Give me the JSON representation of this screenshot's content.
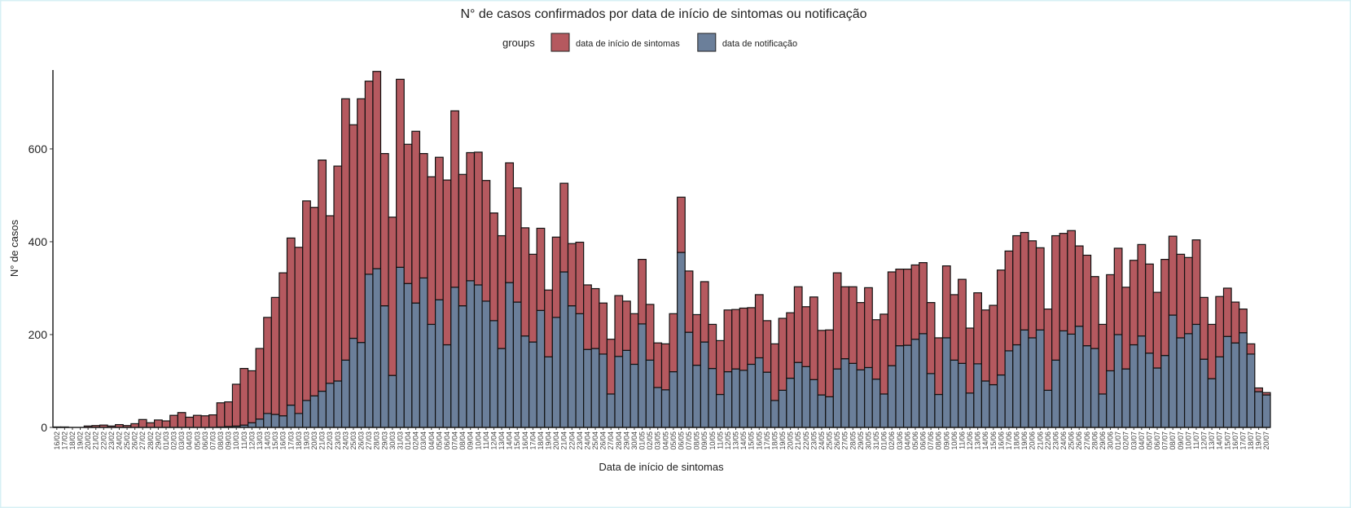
{
  "chart_data": {
    "type": "stacked_bar",
    "title": "N° de casos confirmados por data de início de sintomas ou notificação",
    "x_label": "Data de início de sintomas",
    "y_label": "N° de casos",
    "legend_title": "groups",
    "categories": [
      "16/02",
      "17/02",
      "18/02",
      "19/02",
      "20/02",
      "21/02",
      "22/02",
      "23/02",
      "24/02",
      "25/02",
      "26/02",
      "27/02",
      "28/02",
      "29/02",
      "01/03",
      "02/03",
      "03/03",
      "04/03",
      "05/03",
      "06/03",
      "07/03",
      "08/03",
      "09/03",
      "10/03",
      "11/03",
      "12/03",
      "13/03",
      "14/03",
      "15/03",
      "16/03",
      "17/03",
      "18/03",
      "19/03",
      "20/03",
      "21/03",
      "22/03",
      "23/03",
      "24/03",
      "25/03",
      "26/03",
      "27/03",
      "28/03",
      "29/03",
      "30/03",
      "31/03",
      "01/04",
      "02/04",
      "03/04",
      "04/04",
      "05/04",
      "06/04",
      "07/04",
      "08/04",
      "09/04",
      "10/04",
      "11/04",
      "12/04",
      "13/04",
      "14/04",
      "15/04",
      "16/04",
      "17/04",
      "18/04",
      "19/04",
      "20/04",
      "21/04",
      "22/04",
      "23/04",
      "24/04",
      "25/04",
      "26/04",
      "27/04",
      "28/04",
      "29/04",
      "30/04",
      "01/05",
      "02/05",
      "03/05",
      "04/05",
      "05/05",
      "06/05",
      "07/05",
      "08/05",
      "09/05",
      "10/05",
      "11/05",
      "12/05",
      "13/05",
      "14/05",
      "15/05",
      "16/05",
      "17/05",
      "18/05",
      "19/05",
      "20/05",
      "21/05",
      "22/05",
      "23/05",
      "24/05",
      "25/05",
      "26/05",
      "27/05",
      "28/05",
      "29/05",
      "30/05",
      "31/05",
      "01/06",
      "02/06",
      "03/06",
      "04/06",
      "05/06",
      "06/06",
      "07/06",
      "08/06",
      "09/06",
      "10/06",
      "11/06",
      "12/06",
      "13/06",
      "14/06",
      "15/06",
      "16/06",
      "17/06",
      "18/06",
      "19/06",
      "20/06",
      "21/06",
      "22/06",
      "23/06",
      "24/06",
      "25/06",
      "26/06",
      "27/06",
      "28/06",
      "29/06",
      "30/06",
      "01/07",
      "02/07",
      "03/07",
      "04/07",
      "05/07",
      "06/07",
      "07/07",
      "08/07",
      "09/07",
      "10/07",
      "11/07",
      "12/07",
      "13/07",
      "14/07",
      "15/07",
      "16/07",
      "17/07",
      "18/07",
      "19/07",
      "20/07"
    ],
    "series": [
      {
        "name": "data de notificação",
        "color": "#6b7f9a",
        "values": [
          0,
          0,
          0,
          0,
          0,
          0,
          0,
          0,
          0,
          0,
          0,
          0,
          0,
          0,
          0,
          0,
          0,
          0,
          0,
          0,
          0,
          1,
          2,
          3,
          5,
          10,
          18,
          30,
          28,
          25,
          48,
          30,
          58,
          68,
          78,
          95,
          100,
          145,
          192,
          183,
          330,
          342,
          262,
          112,
          345,
          310,
          268,
          322,
          222,
          275,
          178,
          302,
          262,
          316,
          307,
          272,
          230,
          170,
          312,
          270,
          197,
          184,
          252,
          152,
          237,
          335,
          262,
          245,
          168,
          170,
          158,
          72,
          153,
          166,
          136,
          223,
          145,
          86,
          81,
          120,
          377,
          205,
          134,
          184,
          127,
          71,
          120,
          126,
          123,
          136,
          150,
          119,
          58,
          80,
          106,
          140,
          131,
          103,
          70,
          66,
          126,
          148,
          138,
          124,
          129,
          104,
          72,
          133,
          176,
          177,
          190,
          202,
          116,
          71,
          193,
          145,
          138,
          74,
          137,
          100,
          92,
          113,
          165,
          178,
          210,
          193,
          210,
          80,
          145,
          208,
          201,
          218,
          176,
          170,
          72,
          122,
          200,
          126,
          178,
          197,
          160,
          128,
          155,
          242,
          193,
          202,
          222,
          147,
          105,
          152,
          196,
          182,
          204,
          158,
          77,
          70
        ]
      },
      {
        "name": "data de início de sintomas",
        "color": "#b5595f",
        "values": [
          1,
          1,
          0,
          0,
          3,
          4,
          5,
          3,
          6,
          4,
          8,
          17,
          10,
          16,
          14,
          26,
          32,
          22,
          26,
          25,
          27,
          52,
          53,
          90,
          122,
          112,
          152,
          207,
          252,
          308,
          360,
          358,
          430,
          406,
          498,
          361,
          463,
          563,
          460,
          525,
          416,
          425,
          328,
          341,
          405,
          300,
          370,
          268,
          318,
          307,
          355,
          380,
          283,
          276,
          286,
          260,
          232,
          243,
          258,
          246,
          233,
          189,
          177,
          144,
          173,
          191,
          134,
          154,
          139,
          129,
          110,
          118,
          131,
          106,
          109,
          139,
          120,
          96,
          99,
          125,
          119,
          132,
          109,
          130,
          95,
          116,
          133,
          128,
          134,
          122,
          136,
          111,
          122,
          155,
          141,
          163,
          129,
          178,
          139,
          144,
          207,
          155,
          165,
          145,
          172,
          128,
          172,
          202,
          165,
          164,
          160,
          153,
          153,
          122,
          155,
          141,
          181,
          140,
          153,
          153,
          171,
          226,
          215,
          235,
          210,
          209,
          177,
          175,
          268,
          210,
          223,
          173,
          195,
          155,
          150,
          207,
          186,
          176,
          182,
          197,
          192,
          163,
          207,
          170,
          180,
          164,
          182,
          133,
          117,
          130,
          104,
          88,
          51,
          22,
          8,
          5
        ]
      }
    ],
    "ylim": [
      0,
      770
    ],
    "yticks": [
      0,
      200,
      400,
      600
    ],
    "grid": false,
    "legend": "top"
  }
}
